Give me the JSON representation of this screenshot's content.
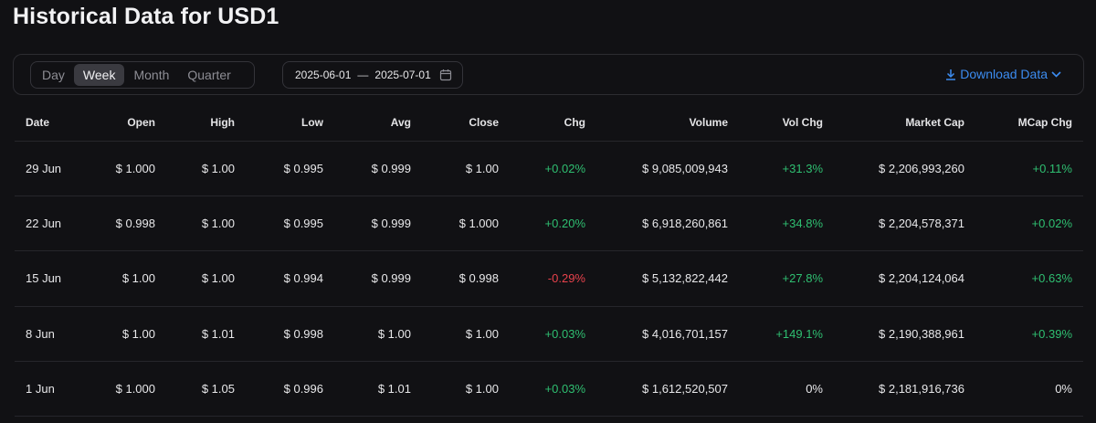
{
  "page": {
    "title": "Historical Data for USD1"
  },
  "toolbar": {
    "intervals": [
      {
        "label": "Day",
        "active": false
      },
      {
        "label": "Week",
        "active": true
      },
      {
        "label": "Month",
        "active": false
      },
      {
        "label": "Quarter",
        "active": false
      }
    ],
    "date_from": "2025-06-01",
    "date_sep": "—",
    "date_to": "2025-07-01",
    "download_label": "Download Data",
    "accent_color": "#3c8cf0"
  },
  "table": {
    "columns": [
      "Date",
      "Open",
      "High",
      "Low",
      "Avg",
      "Close",
      "Chg",
      "Volume",
      "Vol Chg",
      "Market Cap",
      "MCap Chg"
    ],
    "rows": [
      {
        "date": "29 Jun",
        "open": "$ 1.000",
        "high": "$ 1.00",
        "low": "$ 0.995",
        "avg": "$ 0.999",
        "close": "$ 1.00",
        "chg": "+0.02%",
        "volume": "$ 9,085,009,943",
        "vol_chg": "+31.3%",
        "market_cap": "$ 2,206,993,260",
        "mcap_chg": "+0.11%"
      },
      {
        "date": "22 Jun",
        "open": "$ 0.998",
        "high": "$ 1.00",
        "low": "$ 0.995",
        "avg": "$ 0.999",
        "close": "$ 1.000",
        "chg": "+0.20%",
        "volume": "$ 6,918,260,861",
        "vol_chg": "+34.8%",
        "market_cap": "$ 2,204,578,371",
        "mcap_chg": "+0.02%"
      },
      {
        "date": "15 Jun",
        "open": "$ 1.00",
        "high": "$ 1.00",
        "low": "$ 0.994",
        "avg": "$ 0.999",
        "close": "$ 0.998",
        "chg": "-0.29%",
        "volume": "$ 5,132,822,442",
        "vol_chg": "+27.8%",
        "market_cap": "$ 2,204,124,064",
        "mcap_chg": "+0.63%"
      },
      {
        "date": "8 Jun",
        "open": "$ 1.00",
        "high": "$ 1.01",
        "low": "$ 0.998",
        "avg": "$ 1.00",
        "close": "$ 1.00",
        "chg": "+0.03%",
        "volume": "$ 4,016,701,157",
        "vol_chg": "+149.1%",
        "market_cap": "$ 2,190,388,961",
        "mcap_chg": "+0.39%"
      },
      {
        "date": "1 Jun",
        "open": "$ 1.000",
        "high": "$ 1.05",
        "low": "$ 0.996",
        "avg": "$ 1.01",
        "close": "$ 1.00",
        "chg": "+0.03%",
        "volume": "$ 1,612,520,507",
        "vol_chg": "0%",
        "market_cap": "$ 2,181,916,736",
        "mcap_chg": "0%"
      }
    ],
    "positive_color": "#2fbf71",
    "negative_color": "#e8424c"
  }
}
